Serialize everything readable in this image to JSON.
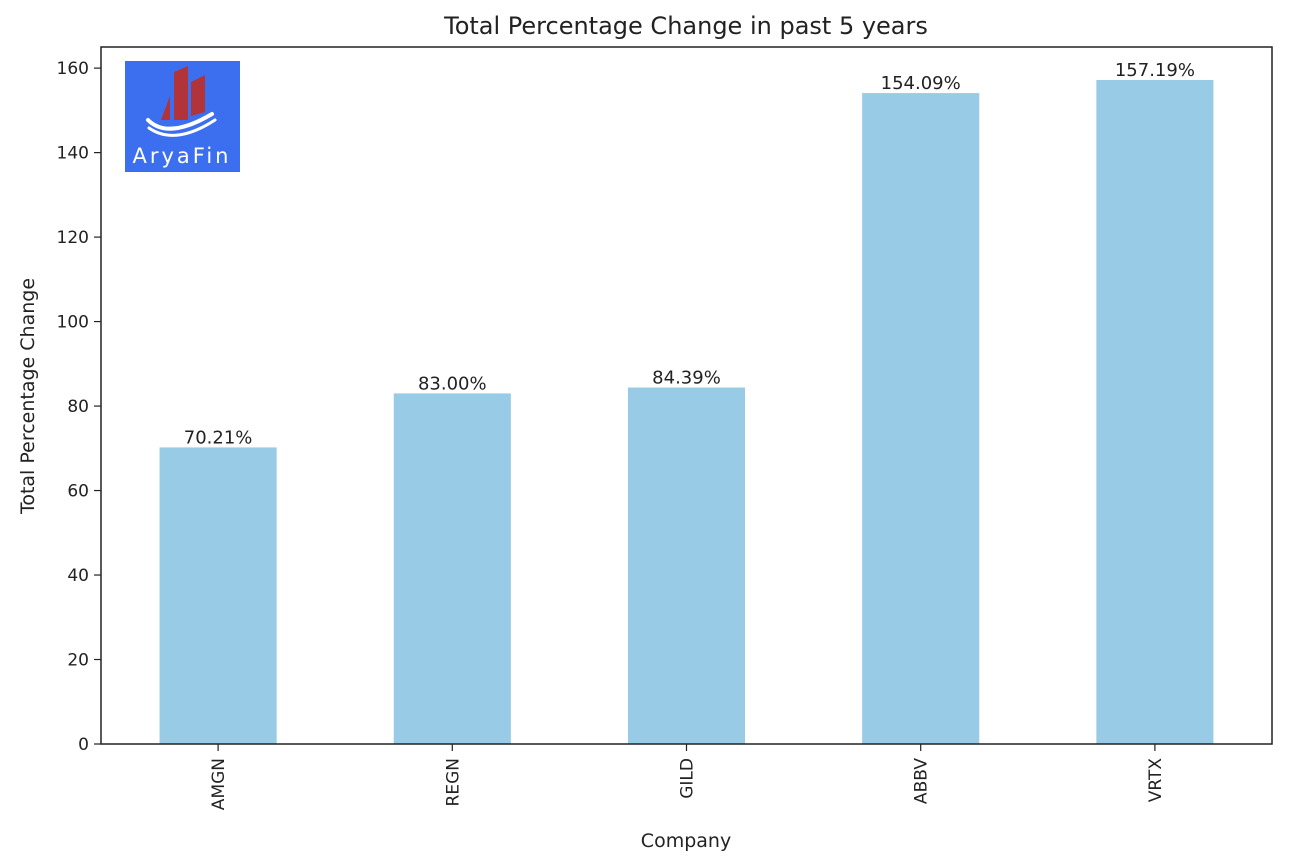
{
  "chart_data": {
    "type": "bar",
    "title": "Total Percentage Change in past 5 years",
    "xlabel": "Company",
    "ylabel": "Total Percentage Change",
    "categories": [
      "AMGN",
      "REGN",
      "GILD",
      "ABBV",
      "VRTX"
    ],
    "values": [
      70.21,
      83.0,
      84.39,
      154.09,
      157.19
    ],
    "data_labels": [
      "70.21%",
      "83.00%",
      "84.39%",
      "154.09%",
      "157.19%"
    ],
    "ylim": [
      0,
      165
    ],
    "yticks": [
      0,
      20,
      40,
      60,
      80,
      100,
      120,
      140,
      160
    ],
    "bar_color": "#97cbe6",
    "grid": false,
    "legend": "none"
  },
  "logo": {
    "text": "AryaFin",
    "background": "#3b6ff0",
    "bar_color": "#b0343a"
  }
}
